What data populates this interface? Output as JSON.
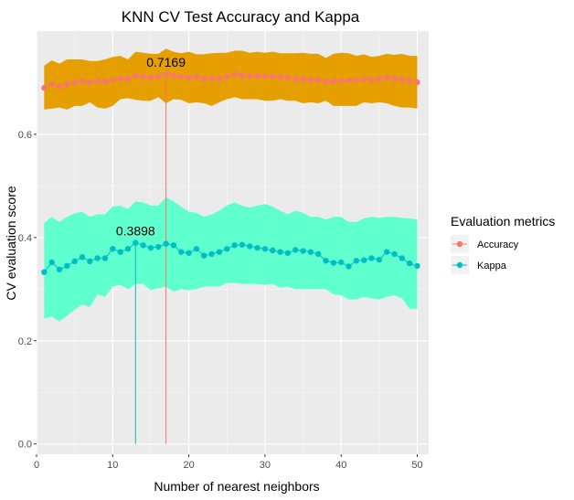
{
  "chart_data": {
    "type": "line",
    "title": "KNN CV Test Accuracy and Kappa",
    "xlabel": "Number of nearest neighbors",
    "ylabel": "CV evaluation score",
    "xlim": [
      0,
      51.5
    ],
    "ylim": [
      -0.02,
      0.8
    ],
    "xticks": [
      0,
      10,
      20,
      30,
      40,
      50
    ],
    "yticks": [
      0.0,
      0.2,
      0.4,
      0.6
    ],
    "ytick_labels": [
      "0.0",
      "0.2",
      "0.4",
      "0.6"
    ],
    "grid": true,
    "legend_position": "right",
    "legend_title": "Evaluation metrics",
    "x": [
      1,
      2,
      3,
      4,
      5,
      6,
      7,
      8,
      9,
      10,
      11,
      12,
      13,
      14,
      15,
      16,
      17,
      18,
      19,
      20,
      21,
      22,
      23,
      24,
      25,
      26,
      27,
      28,
      29,
      30,
      31,
      32,
      33,
      34,
      35,
      36,
      37,
      38,
      39,
      40,
      41,
      42,
      43,
      44,
      45,
      46,
      47,
      48,
      49,
      50
    ],
    "series": [
      {
        "name": "Accuracy",
        "color": "#F8766D",
        "ribbon_color": "#E69F00",
        "values": [
          0.69,
          0.697,
          0.693,
          0.697,
          0.7,
          0.703,
          0.7,
          0.703,
          0.702,
          0.705,
          0.708,
          0.707,
          0.714,
          0.712,
          0.71,
          0.712,
          0.7169,
          0.713,
          0.712,
          0.71,
          0.711,
          0.707,
          0.709,
          0.708,
          0.712,
          0.716,
          0.714,
          0.713,
          0.713,
          0.713,
          0.712,
          0.711,
          0.71,
          0.707,
          0.707,
          0.705,
          0.705,
          0.703,
          0.703,
          0.703,
          0.705,
          0.705,
          0.707,
          0.705,
          0.707,
          0.71,
          0.708,
          0.706,
          0.704,
          0.701
        ],
        "lower": [
          0.648,
          0.65,
          0.652,
          0.648,
          0.655,
          0.655,
          0.662,
          0.652,
          0.65,
          0.655,
          0.668,
          0.67,
          0.667,
          0.665,
          0.665,
          0.672,
          0.66,
          0.668,
          0.667,
          0.66,
          0.662,
          0.66,
          0.655,
          0.662,
          0.668,
          0.672,
          0.668,
          0.668,
          0.668,
          0.665,
          0.665,
          0.668,
          0.665,
          0.665,
          0.66,
          0.662,
          0.66,
          0.665,
          0.655,
          0.655,
          0.655,
          0.655,
          0.662,
          0.66,
          0.662,
          0.66,
          0.655,
          0.652,
          0.652,
          0.65
        ],
        "upper": [
          0.733,
          0.743,
          0.737,
          0.745,
          0.745,
          0.745,
          0.742,
          0.742,
          0.745,
          0.75,
          0.752,
          0.745,
          0.76,
          0.758,
          0.756,
          0.756,
          0.766,
          0.76,
          0.757,
          0.76,
          0.755,
          0.755,
          0.757,
          0.758,
          0.758,
          0.762,
          0.762,
          0.758,
          0.76,
          0.758,
          0.76,
          0.757,
          0.757,
          0.757,
          0.758,
          0.756,
          0.756,
          0.748,
          0.756,
          0.758,
          0.757,
          0.752,
          0.755,
          0.75,
          0.752,
          0.756,
          0.754,
          0.756,
          0.752,
          0.752
        ]
      },
      {
        "name": "Kappa",
        "color": "#00BFC4",
        "ribbon_color": "#5FFFCE",
        "values": [
          0.333,
          0.352,
          0.338,
          0.345,
          0.354,
          0.362,
          0.354,
          0.36,
          0.36,
          0.378,
          0.372,
          0.378,
          0.3898,
          0.385,
          0.38,
          0.382,
          0.388,
          0.385,
          0.372,
          0.37,
          0.378,
          0.365,
          0.368,
          0.372,
          0.378,
          0.385,
          0.386,
          0.383,
          0.38,
          0.378,
          0.375,
          0.372,
          0.37,
          0.376,
          0.374,
          0.372,
          0.368,
          0.355,
          0.351,
          0.352,
          0.344,
          0.355,
          0.356,
          0.36,
          0.357,
          0.372,
          0.368,
          0.36,
          0.35,
          0.345
        ],
        "lower": [
          0.243,
          0.247,
          0.237,
          0.248,
          0.26,
          0.27,
          0.265,
          0.29,
          0.285,
          0.305,
          0.308,
          0.3,
          0.31,
          0.31,
          0.298,
          0.302,
          0.305,
          0.295,
          0.3,
          0.298,
          0.3,
          0.305,
          0.305,
          0.305,
          0.312,
          0.312,
          0.31,
          0.31,
          0.31,
          0.308,
          0.31,
          0.303,
          0.305,
          0.3,
          0.3,
          0.3,
          0.3,
          0.3,
          0.29,
          0.288,
          0.28,
          0.28,
          0.285,
          0.282,
          0.28,
          0.285,
          0.288,
          0.282,
          0.262,
          0.262
        ],
        "upper": [
          0.428,
          0.44,
          0.43,
          0.44,
          0.447,
          0.45,
          0.44,
          0.445,
          0.445,
          0.46,
          0.462,
          0.455,
          0.47,
          0.468,
          0.462,
          0.462,
          0.478,
          0.47,
          0.46,
          0.45,
          0.448,
          0.44,
          0.445,
          0.452,
          0.462,
          0.468,
          0.462,
          0.458,
          0.462,
          0.465,
          0.46,
          0.452,
          0.445,
          0.452,
          0.448,
          0.44,
          0.44,
          0.435,
          0.44,
          0.44,
          0.43,
          0.43,
          0.437,
          0.44,
          0.438,
          0.44,
          0.44,
          0.438,
          0.437,
          0.435
        ]
      }
    ],
    "annotations": [
      {
        "series": "Accuracy",
        "x": 17,
        "y": 0.7169,
        "label": "0.7169"
      },
      {
        "series": "Kappa",
        "x": 13,
        "y": 0.3898,
        "label": "0.3898"
      }
    ]
  }
}
